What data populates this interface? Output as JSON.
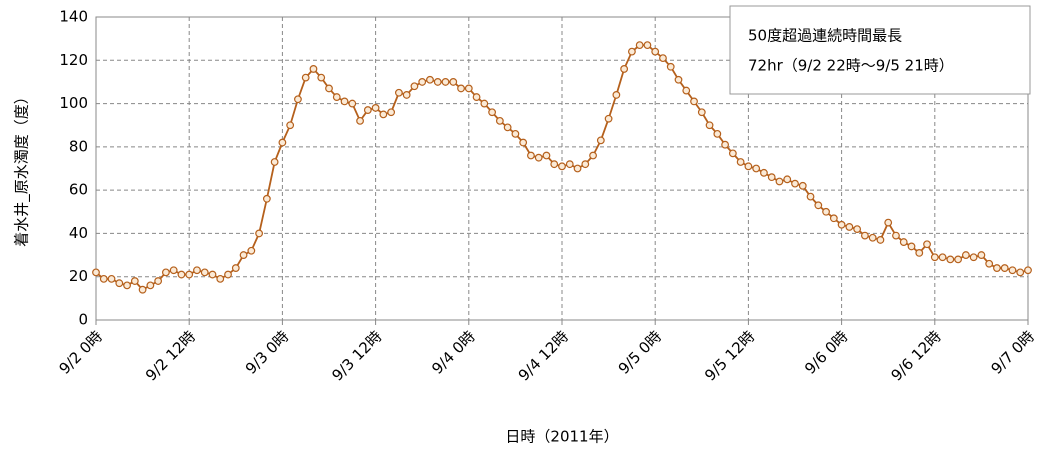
{
  "chart_data": {
    "type": "line",
    "y_label": "着水井_原水濁度（度）",
    "x_label": "日時（2011年）",
    "annotation": [
      "50度超過連続時間最長",
      "72hr（9/2 22時～9/5 21時）"
    ],
    "categories": [
      "9/2 0時",
      null,
      null,
      null,
      null,
      null,
      null,
      null,
      null,
      null,
      null,
      null,
      "9/2 12時",
      null,
      null,
      null,
      null,
      null,
      null,
      null,
      null,
      null,
      null,
      null,
      "9/3 0時",
      null,
      null,
      null,
      null,
      null,
      null,
      null,
      null,
      null,
      null,
      null,
      "9/3 12時",
      null,
      null,
      null,
      null,
      null,
      null,
      null,
      null,
      null,
      null,
      null,
      "9/4 0時",
      null,
      null,
      null,
      null,
      null,
      null,
      null,
      null,
      null,
      null,
      null,
      "9/4 12時",
      null,
      null,
      null,
      null,
      null,
      null,
      null,
      null,
      null,
      null,
      null,
      "9/5 0時",
      null,
      null,
      null,
      null,
      null,
      null,
      null,
      null,
      null,
      null,
      null,
      "9/5 12時",
      null,
      null,
      null,
      null,
      null,
      null,
      null,
      null,
      null,
      null,
      null,
      "9/6 0時",
      null,
      null,
      null,
      null,
      null,
      null,
      null,
      null,
      null,
      null,
      null,
      "9/6 12時",
      null,
      null,
      null,
      null,
      null,
      null,
      null,
      null,
      null,
      null,
      null,
      "9/7 0時"
    ],
    "values": [
      22,
      19,
      19,
      17,
      16,
      18,
      14,
      16,
      18,
      22,
      23,
      21,
      21,
      23,
      22,
      21,
      19,
      21,
      24,
      30,
      32,
      40,
      56,
      73,
      82,
      90,
      102,
      112,
      116,
      112,
      107,
      103,
      101,
      100,
      92,
      97,
      98,
      95,
      96,
      105,
      104,
      108,
      110,
      111,
      110,
      110,
      110,
      107,
      107,
      103,
      100,
      96,
      92,
      89,
      86,
      82,
      76,
      75,
      76,
      72,
      71,
      72,
      70,
      72,
      76,
      83,
      93,
      104,
      116,
      124,
      127,
      127,
      124,
      121,
      117,
      111,
      106,
      101,
      96,
      90,
      86,
      81,
      77,
      73,
      71,
      70,
      68,
      66,
      64,
      65,
      63,
      62,
      57,
      53,
      50,
      47,
      44,
      43,
      42,
      39,
      38,
      37,
      45,
      39,
      36,
      34,
      31,
      35,
      29,
      29,
      28,
      28,
      30,
      29,
      30,
      26,
      24,
      24,
      23,
      22,
      23
    ],
    "color": "#b5601c",
    "ylim": [
      0,
      140
    ],
    "yticks": [
      0,
      20,
      40,
      60,
      80,
      100,
      120,
      140
    ],
    "grid": true
  }
}
